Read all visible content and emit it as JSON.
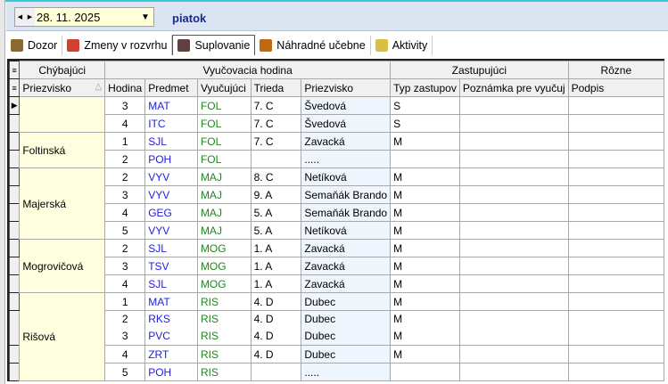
{
  "toolbar": {
    "date": "28. 11. 2025",
    "day": "piatok"
  },
  "tabs": [
    {
      "label": "Dozor",
      "icon": "eye-icon"
    },
    {
      "label": "Zmeny v rozvrhu",
      "icon": "refresh-icon"
    },
    {
      "label": "Suplovanie",
      "icon": "person-icon",
      "active": true
    },
    {
      "label": "Náhradné učebne",
      "icon": "door-icon"
    },
    {
      "label": "Aktivity",
      "icon": "calendar-icon"
    }
  ],
  "groups": [
    "Chýbajúci",
    "Vyučovacia hodina",
    "Zastupujúci",
    "Rôzne"
  ],
  "columns": [
    "Priezvisko",
    "Hodina",
    "Predmet",
    "Vyučujúci",
    "Trieda",
    "Priezvisko",
    "Typ zastupov",
    "Poznámka pre vyučuj",
    "Podpis"
  ],
  "blocks": [
    {
      "name": "",
      "rows": [
        [
          "3",
          "MAT",
          "FOL",
          "7. C",
          "Švedová",
          "S"
        ],
        [
          "4",
          "ITC",
          "FOL",
          "7. C",
          "Švedová",
          "S"
        ]
      ]
    },
    {
      "name": "Foltinská",
      "rows": [
        [
          "1",
          "SJL",
          "FOL",
          "7. C",
          "Zavacká",
          "M"
        ],
        [
          "2",
          "POH",
          "FOL",
          "",
          ".....",
          ""
        ]
      ]
    },
    {
      "name": "Majerská",
      "rows": [
        [
          "2",
          "VYV",
          "MAJ",
          "8. C",
          "Netíková",
          "M"
        ],
        [
          "3",
          "VYV",
          "MAJ",
          "9. A",
          "Semaňák Brando",
          "M"
        ],
        [
          "4",
          "GEG",
          "MAJ",
          "5. A",
          "Semaňák Brando",
          "M"
        ],
        [
          "5",
          "VYV",
          "MAJ",
          "5. A",
          "Netíková",
          "M"
        ]
      ]
    },
    {
      "name": "Mogrovičová",
      "rows": [
        [
          "2",
          "SJL",
          "MOG",
          "1. A",
          "Zavacká",
          "M"
        ],
        [
          "3",
          "TSV",
          "MOG",
          "1. A",
          "Zavacká",
          "M"
        ],
        [
          "4",
          "SJL",
          "MOG",
          "1. A",
          "Zavacká",
          "M"
        ]
      ]
    },
    {
      "name": "Rišová",
      "rows": [
        [
          "1",
          "MAT",
          "RIS",
          "4. D",
          "Dubec",
          "M"
        ],
        [
          "2\n3",
          "RKS\nPVC",
          "RIS\nRIS",
          "4. D\n4. D",
          "Dubec\nDubec",
          "M\nM"
        ],
        [
          "4",
          "ZRT",
          "RIS",
          "4. D",
          "Dubec",
          "M"
        ],
        [
          "5",
          "POH",
          "RIS",
          "",
          ".....",
          ""
        ]
      ]
    }
  ]
}
